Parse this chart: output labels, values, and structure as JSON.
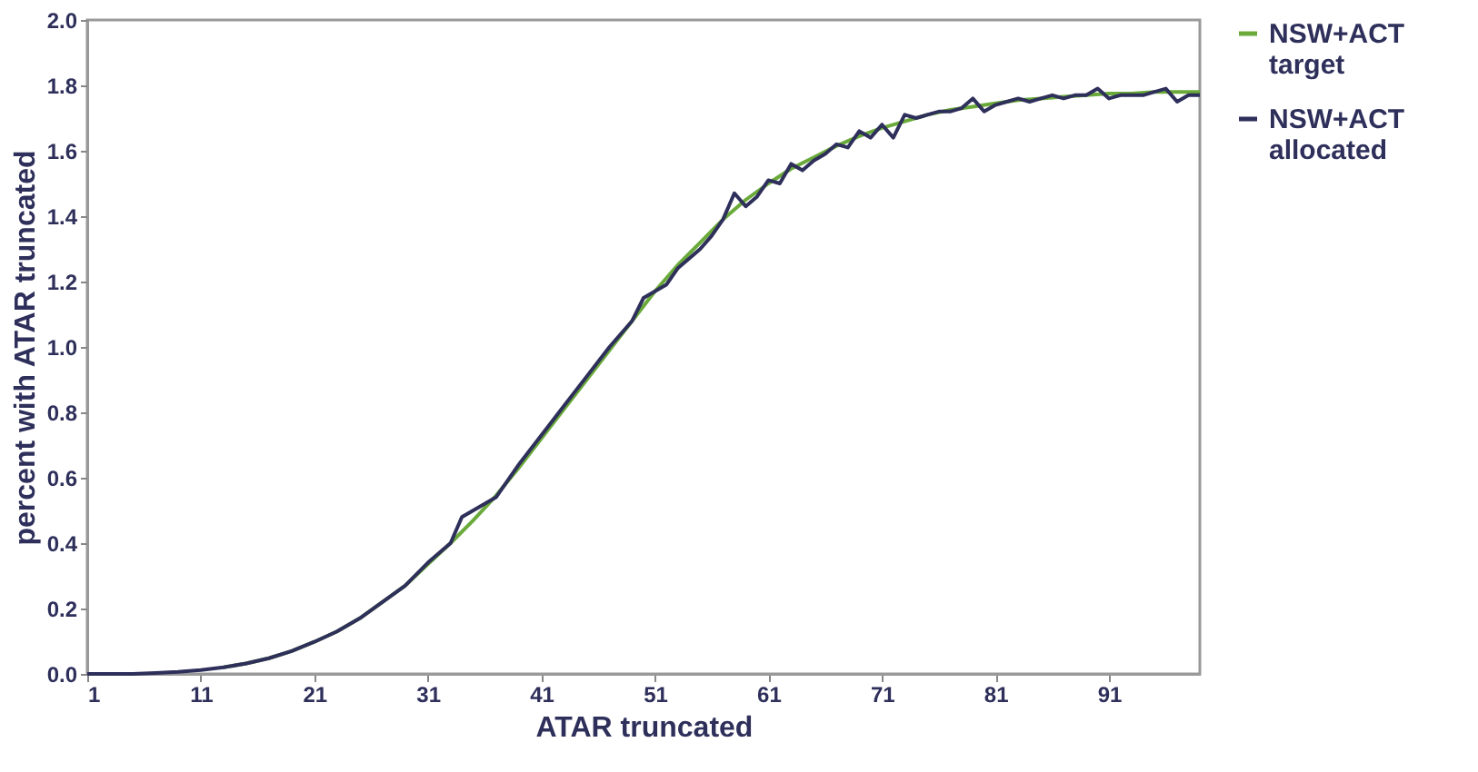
{
  "chart_data": {
    "type": "line",
    "xlabel": "ATAR truncated",
    "ylabel": "percent with ATAR truncated",
    "xlim": [
      1,
      99
    ],
    "xticks": [
      1,
      11,
      21,
      31,
      41,
      51,
      61,
      71,
      81,
      91
    ],
    "ylim": [
      0,
      2.0
    ],
    "yticks": [
      {
        "value": 0,
        "label": "0.0"
      },
      {
        "value": 0.2,
        "label": "0.2"
      },
      {
        "value": 0.4,
        "label": "0.4"
      },
      {
        "value": 0.6,
        "label": "0.6"
      },
      {
        "value": 0.8,
        "label": "0.8"
      },
      {
        "value": 1.0,
        "label": "1.0"
      },
      {
        "value": 1.2,
        "label": "1.2"
      },
      {
        "value": 1.4,
        "label": "1.4"
      },
      {
        "value": 1.6,
        "label": "1.6"
      },
      {
        "value": 1.8,
        "label": "1.8"
      },
      {
        "value": 2.0,
        "label": "2.0"
      }
    ],
    "grid": false,
    "legend": "right",
    "marker": "none",
    "line_style": "solid",
    "series": [
      {
        "name": "NSW+ACT target",
        "color": "#6aaa3a",
        "x": [
          13,
          15,
          17,
          19,
          21,
          23,
          25,
          27,
          29,
          31,
          33,
          35,
          37,
          39,
          41,
          43,
          45,
          47,
          49,
          51,
          53,
          55,
          57,
          59,
          61,
          63,
          65,
          67,
          69,
          71,
          73,
          75,
          77,
          79,
          81,
          83,
          85,
          87,
          89,
          91,
          93,
          95,
          97,
          99
        ],
        "values": [
          0.02,
          0.032,
          0.048,
          0.07,
          0.098,
          0.13,
          0.17,
          0.22,
          0.27,
          0.335,
          0.4,
          0.47,
          0.545,
          0.63,
          0.72,
          0.81,
          0.9,
          0.99,
          1.08,
          1.17,
          1.25,
          1.32,
          1.39,
          1.45,
          1.5,
          1.545,
          1.58,
          1.615,
          1.645,
          1.67,
          1.69,
          1.71,
          1.725,
          1.735,
          1.745,
          1.755,
          1.76,
          1.765,
          1.77,
          1.775,
          1.775,
          1.78,
          1.78,
          1.78
        ]
      },
      {
        "name": "NSW+ACT allocated",
        "color": "#2e2f5a",
        "x": [
          1,
          3,
          5,
          7,
          9,
          11,
          13,
          15,
          17,
          19,
          21,
          23,
          25,
          27,
          29,
          31,
          33,
          34,
          35,
          36,
          37,
          39,
          41,
          43,
          45,
          47,
          49,
          50,
          51,
          52,
          53,
          55,
          56,
          57,
          58,
          59,
          60,
          61,
          62,
          63,
          64,
          65,
          66,
          67,
          68,
          69,
          70,
          71,
          72,
          73,
          74,
          75,
          76,
          77,
          78,
          79,
          80,
          81,
          82,
          83,
          84,
          85,
          86,
          87,
          88,
          89,
          90,
          91,
          92,
          93,
          94,
          95,
          96,
          97,
          98,
          99
        ],
        "values": [
          0,
          0,
          0,
          0.003,
          0.006,
          0.012,
          0.02,
          0.032,
          0.048,
          0.07,
          0.098,
          0.13,
          0.17,
          0.22,
          0.27,
          0.34,
          0.4,
          0.48,
          0.5,
          0.52,
          0.54,
          0.64,
          0.73,
          0.82,
          0.91,
          1.0,
          1.08,
          1.15,
          1.17,
          1.19,
          1.24,
          1.3,
          1.34,
          1.39,
          1.47,
          1.43,
          1.46,
          1.51,
          1.5,
          1.56,
          1.54,
          1.57,
          1.59,
          1.62,
          1.61,
          1.66,
          1.64,
          1.68,
          1.64,
          1.71,
          1.7,
          1.71,
          1.72,
          1.72,
          1.73,
          1.76,
          1.72,
          1.74,
          1.75,
          1.76,
          1.75,
          1.76,
          1.77,
          1.76,
          1.77,
          1.77,
          1.79,
          1.76,
          1.77,
          1.77,
          1.77,
          1.78,
          1.79,
          1.75,
          1.77,
          1.77
        ]
      }
    ]
  }
}
